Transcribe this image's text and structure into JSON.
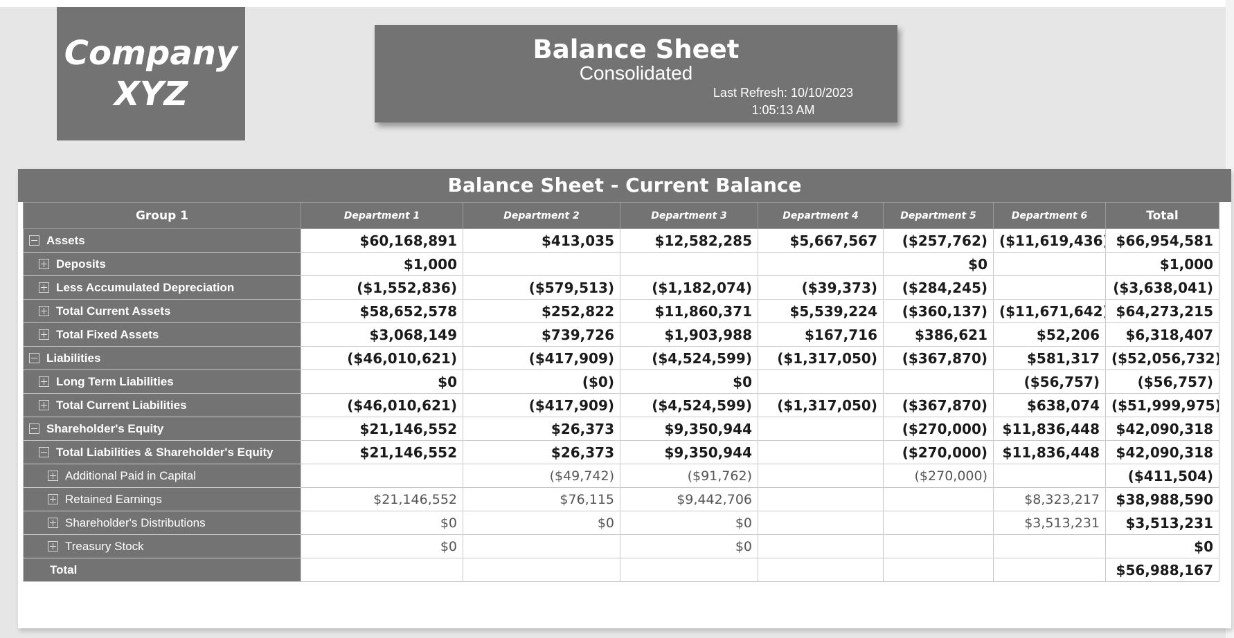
{
  "logo": {
    "line1": "Company",
    "line2": "XYZ"
  },
  "header": {
    "title": "Balance Sheet",
    "subtitle": "Consolidated",
    "refresh_line1": "Last Refresh: 10/10/2023",
    "refresh_line2": "1:05:13 AM"
  },
  "matrix": {
    "title": "Balance Sheet - Current Balance",
    "columns": [
      "Group 1",
      "Department 1",
      "Department 2",
      "Department 3",
      "Department 4",
      "Department 5",
      "Department 6",
      "Total"
    ],
    "rows": [
      {
        "label": "Assets",
        "toggle": "minus",
        "level": 0,
        "bold": true,
        "values": [
          "$60,168,891",
          "$413,035",
          "$12,582,285",
          "$5,667,567",
          "($257,762)",
          "($11,619,436)",
          "$66,954,581"
        ]
      },
      {
        "label": "Deposits",
        "toggle": "plus",
        "level": 1,
        "bold": true,
        "values": [
          "$1,000",
          "",
          "",
          "",
          "$0",
          "",
          "$1,000"
        ]
      },
      {
        "label": "Less Accumulated Depreciation",
        "toggle": "plus",
        "level": 1,
        "bold": true,
        "values": [
          "($1,552,836)",
          "($579,513)",
          "($1,182,074)",
          "($39,373)",
          "($284,245)",
          "",
          "($3,638,041)"
        ]
      },
      {
        "label": "Total Current Assets",
        "toggle": "plus",
        "level": 1,
        "bold": true,
        "values": [
          "$58,652,578",
          "$252,822",
          "$11,860,371",
          "$5,539,224",
          "($360,137)",
          "($11,671,642)",
          "$64,273,215"
        ]
      },
      {
        "label": "Total Fixed Assets",
        "toggle": "plus",
        "level": 1,
        "bold": true,
        "values": [
          "$3,068,149",
          "$739,726",
          "$1,903,988",
          "$167,716",
          "$386,621",
          "$52,206",
          "$6,318,407"
        ]
      },
      {
        "label": "Liabilities",
        "toggle": "minus",
        "level": 0,
        "bold": true,
        "values": [
          "($46,010,621)",
          "($417,909)",
          "($4,524,599)",
          "($1,317,050)",
          "($367,870)",
          "$581,317",
          "($52,056,732)"
        ]
      },
      {
        "label": "Long Term Liabilities",
        "toggle": "plus",
        "level": 1,
        "bold": true,
        "values": [
          "$0",
          "($0)",
          "$0",
          "",
          "",
          "($56,757)",
          "($56,757)"
        ]
      },
      {
        "label": "Total Current Liabilities",
        "toggle": "plus",
        "level": 1,
        "bold": true,
        "values": [
          "($46,010,621)",
          "($417,909)",
          "($4,524,599)",
          "($1,317,050)",
          "($367,870)",
          "$638,074",
          "($51,999,975)"
        ]
      },
      {
        "label": "Shareholder's Equity",
        "toggle": "minus",
        "level": 0,
        "bold": true,
        "values": [
          "$21,146,552",
          "$26,373",
          "$9,350,944",
          "",
          "($270,000)",
          "$11,836,448",
          "$42,090,318"
        ]
      },
      {
        "label": "Total Liabilities & Shareholder's Equity",
        "toggle": "minus",
        "level": 1,
        "bold": true,
        "values": [
          "$21,146,552",
          "$26,373",
          "$9,350,944",
          "",
          "($270,000)",
          "$11,836,448",
          "$42,090,318"
        ]
      },
      {
        "label": "Additional Paid in Capital",
        "toggle": "plus",
        "level": 2,
        "bold": false,
        "values": [
          "",
          "($49,742)",
          "($91,762)",
          "",
          "($270,000)",
          "",
          "($411,504)"
        ]
      },
      {
        "label": "Retained Earnings",
        "toggle": "plus",
        "level": 2,
        "bold": false,
        "values": [
          "$21,146,552",
          "$76,115",
          "$9,442,706",
          "",
          "",
          "$8,323,217",
          "$38,988,590"
        ]
      },
      {
        "label": "Shareholder's Distributions",
        "toggle": "plus",
        "level": 2,
        "bold": false,
        "values": [
          "$0",
          "$0",
          "$0",
          "",
          "",
          "$3,513,231",
          "$3,513,231"
        ]
      },
      {
        "label": "Treasury Stock",
        "toggle": "plus",
        "level": 2,
        "bold": false,
        "values": [
          "$0",
          "",
          "$0",
          "",
          "",
          "",
          "$0"
        ]
      }
    ],
    "total_row": {
      "label": "Total",
      "values": [
        "",
        "",
        "",
        "",
        "",
        "",
        "$56,988,167"
      ]
    }
  }
}
